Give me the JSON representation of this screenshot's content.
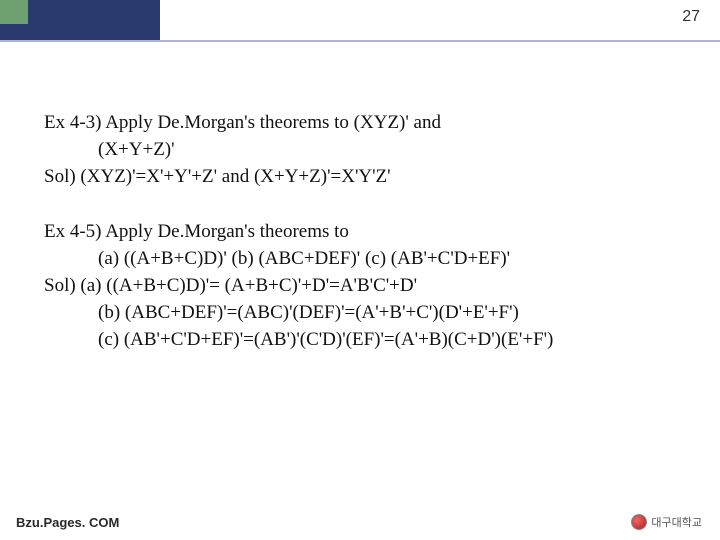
{
  "page_number": "27",
  "colors": {
    "band_dark": "#2a3a6e",
    "band_accent": "#6fa06f",
    "rule": "#a9b4d6",
    "text": "#111111",
    "background": "#ffffff"
  },
  "ex43": {
    "line1": "Ex 4-3) Apply De.Morgan's theorems to (XYZ)' and",
    "line2": "(X+Y+Z)'",
    "sol": "Sol) (XYZ)'=X'+Y'+Z'  and (X+Y+Z)'=X'Y'Z'"
  },
  "ex45": {
    "line1": "Ex 4-5) Apply De.Morgan's theorems to",
    "line2": "(a) ((A+B+C)D)'   (b) (ABC+DEF)'  (c) (AB'+C'D+EF)'",
    "sol_a": "Sol) (a) ((A+B+C)D)'= (A+B+C)'+D'=A'B'C'+D'",
    "sol_b": "(b) (ABC+DEF)'=(ABC)'(DEF)'=(A'+B'+C')(D'+E'+F')",
    "sol_c": "(c) (AB'+C'D+EF)'=(AB')'(C'D)'(EF)'=(A'+B)(C+D')(E'+F')"
  },
  "footer": "Bzu.Pages. COM",
  "logo_text": "대구대학교"
}
